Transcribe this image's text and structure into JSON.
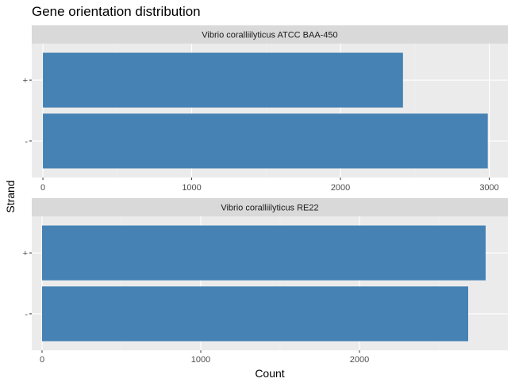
{
  "chart_data": {
    "type": "bar",
    "orientation": "horizontal",
    "title": "Gene orientation distribution",
    "xlabel": "Count",
    "ylabel": "Strand",
    "grid": true,
    "legend": "none",
    "colors": {
      "bar": "#4682B4",
      "panel_bg": "#EBEBEB",
      "strip_bg": "#D9D9D9",
      "grid_major": "#FFFFFF",
      "grid_minor": "#F2F2F2"
    },
    "facets": [
      {
        "label": "Vibrio coralliilyticus ATCC BAA-450",
        "categories": [
          "+",
          "-"
        ],
        "values": [
          2420,
          2990
        ],
        "xlim": [
          -75,
          3125
        ],
        "xticks": [
          0,
          1000,
          2000,
          3000
        ],
        "xtick_labels": [
          "0",
          "1000",
          "2000",
          "3000"
        ]
      },
      {
        "label": "Vibrio coralliilyticus RE22",
        "categories": [
          "+",
          "-"
        ],
        "values": [
          2795,
          2685
        ],
        "xlim": [
          -65,
          2935
        ],
        "xticks": [
          0,
          1000,
          2000
        ],
        "xtick_labels": [
          "0",
          "1000",
          "2000"
        ]
      }
    ]
  }
}
